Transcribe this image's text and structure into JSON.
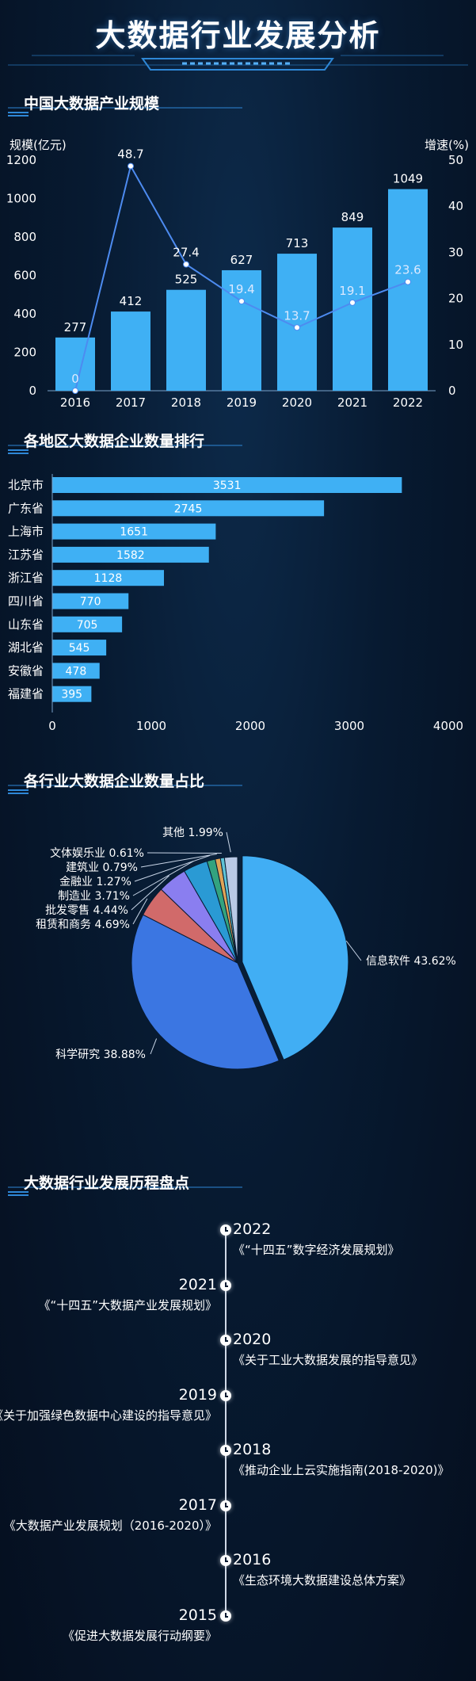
{
  "title": "大数据行业发展分析",
  "sections": {
    "s1": "中国大数据产业规模",
    "s2": "各地区大数据企业数量排行",
    "s3": "各行业大数据企业数量占比",
    "s4": "大数据行业发展历程盘点"
  },
  "chart_data": [
    {
      "type": "bar",
      "categories": [
        "2016",
        "2017",
        "2018",
        "2019",
        "2020",
        "2021",
        "2022"
      ],
      "series": [
        {
          "values": [
            277,
            412,
            525,
            627,
            713,
            849,
            1049
          ],
          "color": "#3fb0f4"
        },
        {
          "values": [
            0,
            48.7,
            27.4,
            19.4,
            13.7,
            19.1,
            23.6
          ],
          "type": "line",
          "axis": "right",
          "color": "#4d8bf0"
        }
      ],
      "ylabel": "规模(亿元)",
      "y2label": "增速(%)",
      "ylim": [
        0,
        1200
      ],
      "y2lim": [
        0,
        50
      ],
      "yticks": [
        0,
        200,
        400,
        600,
        800,
        1000,
        1200
      ],
      "y2ticks": [
        0,
        10,
        20,
        30,
        40,
        50
      ],
      "grid": false
    },
    {
      "type": "bar",
      "orientation": "horizontal",
      "categories": [
        "北京市",
        "广东省",
        "上海市",
        "江苏省",
        "浙江省",
        "四川省",
        "山东省",
        "湖北省",
        "安徽省",
        "福建省"
      ],
      "values": [
        3531,
        2745,
        1651,
        1582,
        1128,
        770,
        705,
        545,
        478,
        395
      ],
      "xlim": [
        0,
        4000
      ],
      "xticks": [
        0,
        1000,
        2000,
        3000,
        4000
      ],
      "color": "#3fb0f4"
    },
    {
      "type": "pie",
      "slices": [
        {
          "label": "信息软件 43.62%",
          "value": 43.62,
          "color": "#41aef4"
        },
        {
          "label": "科学研究 38.88%",
          "value": 38.88,
          "color": "#3b76e2"
        },
        {
          "label": "租赁和商务 4.69%",
          "value": 4.69,
          "color": "#d16a6a"
        },
        {
          "label": "批发零售 4.44%",
          "value": 4.44,
          "color": "#8a7ef0"
        },
        {
          "label": "制造业 3.71%",
          "value": 3.71,
          "color": "#2a9ad4"
        },
        {
          "label": "金融业 1.27%",
          "value": 1.27,
          "color": "#33a37f"
        },
        {
          "label": "建筑业 0.79%",
          "value": 0.79,
          "color": "#e0a456"
        },
        {
          "label": "文体娱乐业 0.61%",
          "value": 0.61,
          "color": "#5fc3d6"
        },
        {
          "label": "其他 1.99%",
          "value": 1.99,
          "color": "#b8c9e6"
        }
      ]
    }
  ],
  "timeline": [
    {
      "year": "2022",
      "text": "《“十四五”数字经济发展规划》"
    },
    {
      "year": "2021",
      "text": "《“十四五”大数据产业发展规划》"
    },
    {
      "year": "2020",
      "text": "《关于工业大数据发展的指导意见》"
    },
    {
      "year": "2019",
      "text": "《关于加强绿色数据中心建设的指导意见》"
    },
    {
      "year": "2018",
      "text": "《推动企业上云实施指南(2018-2020)》"
    },
    {
      "year": "2017",
      "text": "《大数据产业发展规划（2016-2020）》"
    },
    {
      "year": "2016",
      "text": "《生态环境大数据建设总体方案》"
    },
    {
      "year": "2015",
      "text": "《促进大数据发展行动纲要》"
    }
  ]
}
